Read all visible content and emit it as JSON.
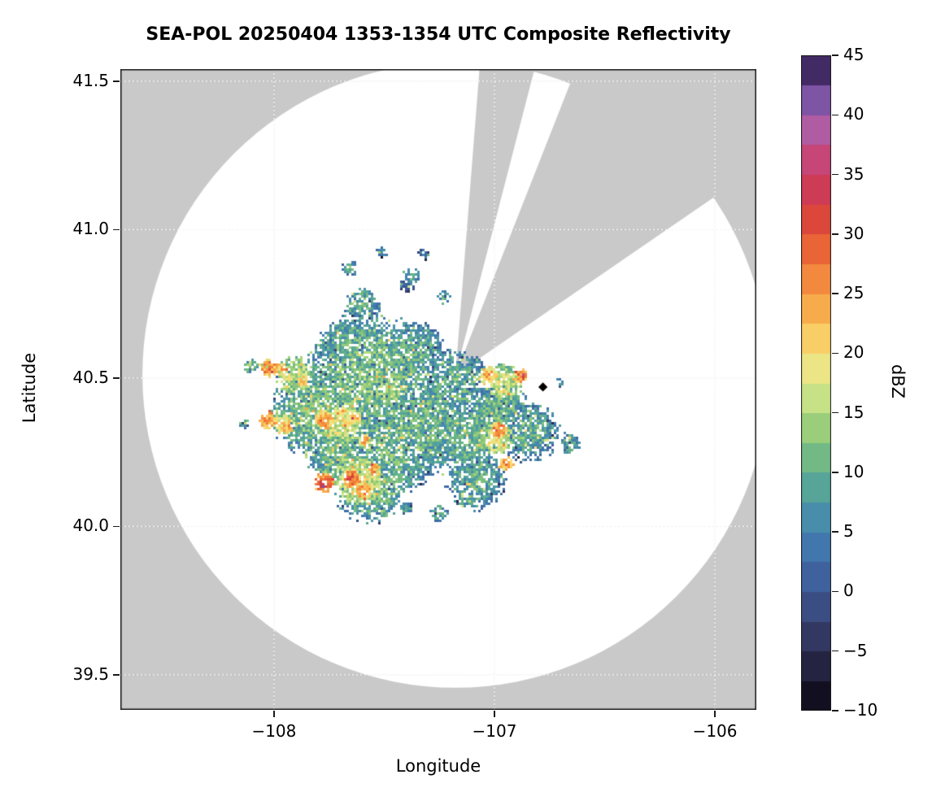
{
  "title": "SEA-POL 20250404 1353-1354 UTC Composite Reflectivity",
  "axes": {
    "xlabel": "Longitude",
    "ylabel": "Latitude",
    "x_ticks": [
      {
        "value": -108,
        "label": "−108"
      },
      {
        "value": -107,
        "label": "−107"
      },
      {
        "value": -106,
        "label": "−106"
      }
    ],
    "y_ticks": [
      {
        "value": 41.5,
        "label": "41.5"
      },
      {
        "value": 41.0,
        "label": "41.0"
      },
      {
        "value": 40.5,
        "label": "40.5"
      },
      {
        "value": 40.0,
        "label": "40.0"
      },
      {
        "value": 39.5,
        "label": "39.5"
      }
    ]
  },
  "colorbar": {
    "label": "dBZ",
    "min": -10,
    "max": 45,
    "bin_size": 2.5,
    "ticks": [
      {
        "value": 45,
        "label": "45"
      },
      {
        "value": 40,
        "label": "40"
      },
      {
        "value": 35,
        "label": "35"
      },
      {
        "value": 30,
        "label": "30"
      },
      {
        "value": 25,
        "label": "25"
      },
      {
        "value": 20,
        "label": "20"
      },
      {
        "value": 15,
        "label": "15"
      },
      {
        "value": 10,
        "label": "10"
      },
      {
        "value": 5,
        "label": "5"
      },
      {
        "value": 0,
        "label": "0"
      },
      {
        "value": -5,
        "label": "−5"
      },
      {
        "value": -10,
        "label": "−10"
      }
    ]
  },
  "chart_data": {
    "type": "heatmap",
    "title": "SEA-POL 20250404 1353-1354 UTC Composite Reflectivity",
    "xlabel": "Longitude",
    "ylabel": "Latitude",
    "units": "dBZ",
    "value_range": [
      -10,
      45
    ],
    "xlim": [
      -108.697,
      -105.812
    ],
    "ylim": [
      39.382,
      41.541
    ],
    "grid": true,
    "background": {
      "outside_color": "#c9c9c9",
      "inside_color": "#ffffff"
    },
    "radar": {
      "center_lon": -107.177,
      "center_lat": 40.511,
      "range_lon_deg": 1.42,
      "blocked_sectors_az_deg": [
        [
          4.5,
          14.5
        ],
        [
          21.5,
          56
        ]
      ]
    },
    "site_marker": {
      "lon": -106.78,
      "lat": 40.47,
      "shape": "diamond",
      "color": "#000000"
    },
    "colormap_stops": [
      [
        -10,
        "#08060f"
      ],
      [
        -7.5,
        "#1b1830"
      ],
      [
        -5,
        "#2c2d51"
      ],
      [
        -2.5,
        "#384372"
      ],
      [
        0,
        "#3e5894"
      ],
      [
        2.5,
        "#3f6ca8"
      ],
      [
        5,
        "#4382b0"
      ],
      [
        7.5,
        "#4d99a4"
      ],
      [
        10,
        "#60af8d"
      ],
      [
        12.5,
        "#84c37c"
      ],
      [
        15,
        "#b0d878"
      ],
      [
        17.5,
        "#ddeb94"
      ],
      [
        20,
        "#f9df76"
      ],
      [
        22.5,
        "#f8bc55"
      ],
      [
        25,
        "#f59b42"
      ],
      [
        27.5,
        "#ef7739"
      ],
      [
        30,
        "#e35133"
      ],
      [
        32.5,
        "#d23c43"
      ],
      [
        35,
        "#ca3a64"
      ],
      [
        37.5,
        "#c2518c"
      ],
      [
        40,
        "#9d66b8"
      ],
      [
        42.5,
        "#5f4190"
      ],
      [
        45,
        "#251539"
      ]
    ],
    "echo_cells_fields": [
      "lon",
      "lat",
      "radius_deg",
      "dbz_peak",
      "sparsity"
    ],
    "echo_cells": [
      [
        -107.565,
        40.5,
        0.314,
        12,
        0.34
      ],
      [
        -107.786,
        40.39,
        0.24,
        12,
        0.33
      ],
      [
        -107.325,
        40.349,
        0.258,
        11,
        0.33
      ],
      [
        -107.177,
        40.486,
        0.166,
        10,
        0.45
      ],
      [
        -107.472,
        40.253,
        0.221,
        11,
        0.33
      ],
      [
        -107.657,
        40.596,
        0.166,
        11,
        0.38
      ],
      [
        -107.362,
        40.596,
        0.148,
        10,
        0.4
      ],
      [
        -107.122,
        40.295,
        0.166,
        11,
        0.35
      ],
      [
        -106.993,
        40.377,
        0.166,
        11,
        0.35
      ],
      [
        -106.845,
        40.322,
        0.148,
        10,
        0.42
      ],
      [
        -107.085,
        40.158,
        0.148,
        10,
        0.4
      ],
      [
        -107.565,
        40.144,
        0.185,
        12,
        0.35
      ],
      [
        -107.712,
        40.24,
        0.148,
        12,
        0.33
      ],
      [
        -108.026,
        40.536,
        0.044,
        27,
        0.1
      ],
      [
        -107.974,
        40.533,
        0.03,
        24,
        0.1
      ],
      [
        -108.026,
        40.36,
        0.041,
        26,
        0.1
      ],
      [
        -107.945,
        40.338,
        0.033,
        24,
        0.12
      ],
      [
        -107.775,
        40.36,
        0.044,
        26,
        0.1
      ],
      [
        -107.701,
        40.382,
        0.033,
        23,
        0.12
      ],
      [
        -107.775,
        40.147,
        0.048,
        30,
        0.08
      ],
      [
        -107.649,
        40.16,
        0.041,
        29,
        0.08
      ],
      [
        -107.594,
        40.121,
        0.037,
        27,
        0.1
      ],
      [
        -107.546,
        40.19,
        0.033,
        25,
        0.12
      ],
      [
        -106.985,
        40.327,
        0.041,
        27,
        0.1
      ],
      [
        -106.948,
        40.212,
        0.037,
        26,
        0.1
      ],
      [
        -106.882,
        40.508,
        0.037,
        27,
        0.1
      ],
      [
        -107.03,
        40.508,
        0.044,
        24,
        0.15
      ],
      [
        -107.638,
        40.368,
        0.033,
        24,
        0.12
      ],
      [
        -107.871,
        40.486,
        0.033,
        22,
        0.15
      ],
      [
        -107.59,
        40.289,
        0.03,
        23,
        0.15
      ],
      [
        -107.915,
        40.514,
        0.092,
        17,
        0.28
      ],
      [
        -107.694,
        40.349,
        0.103,
        18,
        0.27
      ],
      [
        -107.62,
        40.158,
        0.111,
        19,
        0.27
      ],
      [
        -106.993,
        40.295,
        0.081,
        18,
        0.28
      ],
      [
        -106.956,
        40.486,
        0.092,
        17,
        0.3
      ],
      [
        -107.952,
        40.349,
        0.066,
        17,
        0.28
      ],
      [
        -107.472,
        40.459,
        0.074,
        15,
        0.3
      ],
      [
        -107.325,
        40.527,
        0.081,
        4,
        0.3
      ],
      [
        -107.306,
        40.432,
        0.055,
        3,
        0.3
      ],
      [
        -107.251,
        40.61,
        0.03,
        -2,
        0.2
      ],
      [
        -107.225,
        40.478,
        0.026,
        -1,
        0.2
      ],
      [
        -107.129,
        40.426,
        0.03,
        0,
        0.2
      ],
      [
        -107.565,
        40.563,
        0.092,
        7,
        0.32
      ],
      [
        -107.399,
        40.815,
        0.037,
        5,
        0.4
      ],
      [
        -107.325,
        40.919,
        0.03,
        4,
        0.45
      ],
      [
        -107.601,
        40.747,
        0.092,
        10,
        0.6
      ],
      [
        -107.657,
        40.87,
        0.044,
        9,
        0.55
      ],
      [
        -107.38,
        40.842,
        0.044,
        9,
        0.55
      ],
      [
        -107.232,
        40.774,
        0.037,
        9,
        0.55
      ],
      [
        -107.509,
        40.925,
        0.03,
        8,
        0.5
      ],
      [
        -108.107,
        40.541,
        0.037,
        12,
        0.4
      ],
      [
        -108.137,
        40.349,
        0.03,
        10,
        0.45
      ],
      [
        -107.251,
        40.048,
        0.044,
        10,
        0.45
      ],
      [
        -107.14,
        40.089,
        0.037,
        9,
        0.45
      ],
      [
        -107.399,
        40.062,
        0.033,
        9,
        0.45
      ],
      [
        -106.661,
        40.281,
        0.055,
        10,
        0.5
      ],
      [
        -106.705,
        40.486,
        0.022,
        8,
        0.45
      ],
      [
        -107.085,
        40.555,
        0.03,
        2,
        0.3
      ]
    ]
  }
}
